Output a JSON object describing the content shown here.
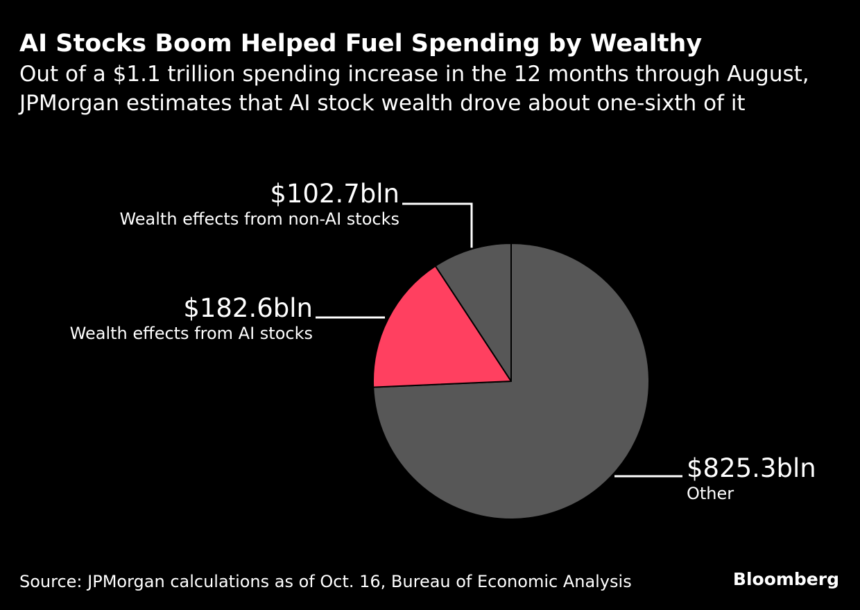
{
  "title": "AI Stocks Boom Helped Fuel Spending by Wealthy",
  "subtitle": "Out of a $1.1 trillion spending increase in the 12 months through August, JPMorgan estimates that AI stock wealth drove about one-sixth of it",
  "chart_data": {
    "type": "pie",
    "unit": "bln",
    "slices": [
      {
        "name": "Other",
        "value": 825.3,
        "label": "$825.3bln",
        "color": "#575757"
      },
      {
        "name": "Wealth effects from AI stocks",
        "value": 182.6,
        "label": "$182.6bln",
        "color": "#ff4060"
      },
      {
        "name": "Wealth effects from non-AI stocks",
        "value": 102.7,
        "label": "$102.7bln",
        "color": "#575757"
      }
    ],
    "start_angle": "12 o'clock",
    "direction": "clockwise"
  },
  "footer": {
    "source": "Source: JPMorgan calculations as of Oct. 16, Bureau of Economic Analysis",
    "brand": "Bloomberg"
  }
}
